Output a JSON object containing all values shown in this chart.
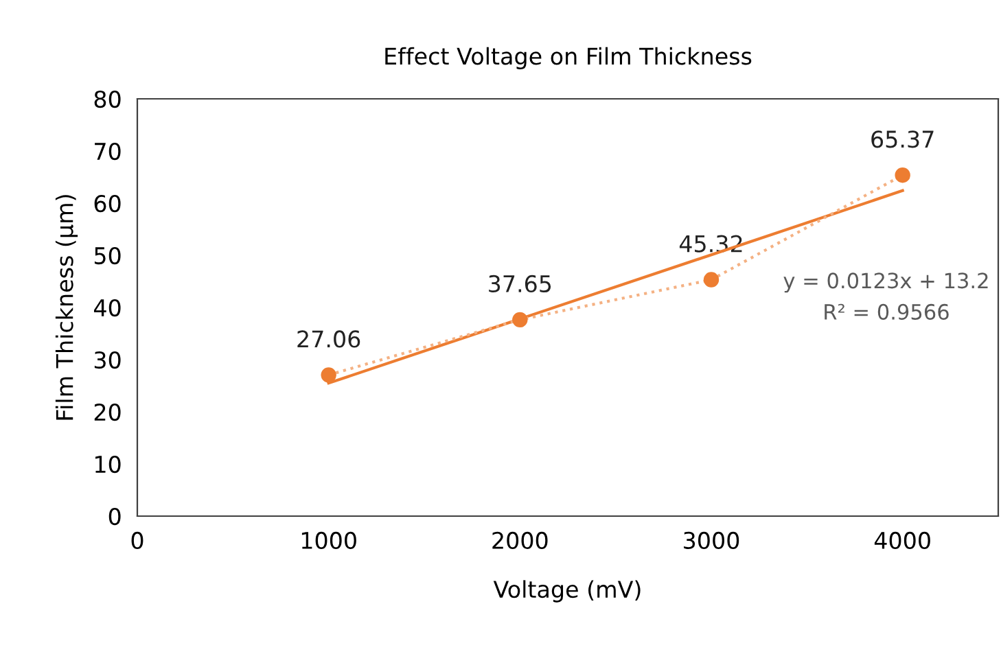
{
  "chart_data": {
    "type": "scatter",
    "title": "Effect Voltage on Film Thickness",
    "xlabel": "Voltage (mV)",
    "ylabel": "Film Thickness (µm)",
    "series": [
      {
        "color": "#ed7d31",
        "x": [
          1000,
          2000,
          3000,
          4000
        ],
        "values": [
          27.06,
          37.65,
          45.32,
          65.37
        ],
        "value_labels": [
          "27.06",
          "37.65",
          "45.32",
          "65.37"
        ],
        "marker": "circle"
      },
      {
        "type": "line",
        "color": "#ed7d31",
        "x": [
          1000,
          4000
        ],
        "values": [
          25.5,
          62.4
        ],
        "line_style": "solid",
        "marker": "none"
      },
      {
        "type": "line",
        "color": "#f4b183",
        "x": [
          1000,
          2000,
          3000,
          4000
        ],
        "values": [
          27.06,
          37.65,
          45.32,
          65.37
        ],
        "line_style": "dotted",
        "marker": "none"
      }
    ],
    "annotations": [
      "y = 0.0123x + 13.2",
      "R² = 0.9566"
    ],
    "xlim": [
      0,
      4500
    ],
    "xticks": [
      0,
      1000,
      2000,
      3000,
      4000
    ],
    "ylim": [
      0,
      80
    ],
    "yticks": [
      0,
      10,
      20,
      30,
      40,
      50,
      60,
      70,
      80
    ],
    "grid": false,
    "legend": false
  }
}
